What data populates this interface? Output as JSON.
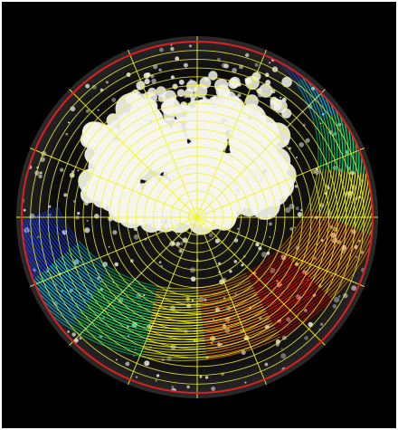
{
  "image": {
    "subject": "all-sky-camera-overlay",
    "colors": {
      "background": "#000000",
      "frame": "#ffffff",
      "horizon_circle": "#e02020",
      "grid": "#f2f22a",
      "cloud": "#f5f5ef",
      "band_gradient": [
        "#1a3cff",
        "#00c8ff",
        "#00e070",
        "#f0f000",
        "#ff8a00",
        "#e80000",
        "#ff8a00",
        "#f0f000",
        "#00e070",
        "#00c8ff",
        "#1a3cff"
      ]
    },
    "grid": {
      "concentric_circles": 20,
      "radial_lines": 8
    }
  }
}
